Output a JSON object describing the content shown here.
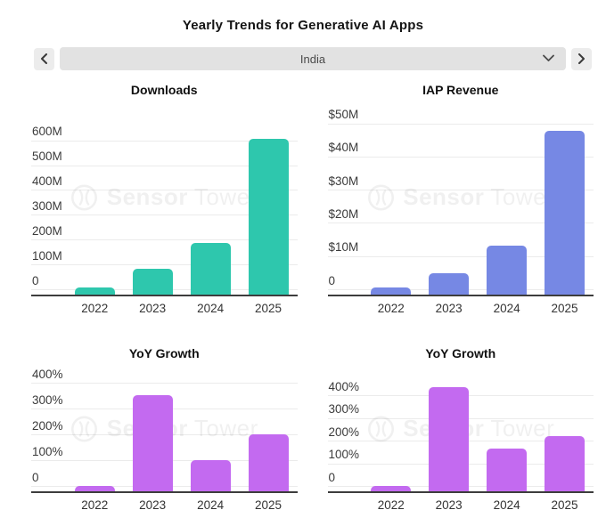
{
  "header": {
    "title": "Yearly Trends for Generative AI Apps"
  },
  "controls": {
    "selected_country": "India",
    "accent_grays": {
      "button_bg": "#ececec",
      "select_bg": "#e2e2e2"
    }
  },
  "icons": {
    "prev": "chevron-left",
    "next": "chevron-right",
    "select": "chevron-down",
    "watermark_logo": "sensor-tower-circle-logo"
  },
  "watermark": {
    "brand": "Sensor Tower",
    "bold_part": "Sensor",
    "light_part": "Tower"
  },
  "chart_data": [
    {
      "type": "bar",
      "title": "Downloads",
      "categories": [
        "2022",
        "2023",
        "2024",
        "2025"
      ],
      "values": [
        10,
        85,
        190,
        610
      ],
      "value_unit": "millions of downloads",
      "ticks": [
        0,
        100,
        200,
        300,
        400,
        500,
        600
      ],
      "tick_labels": [
        "0",
        "100M",
        "200M",
        "300M",
        "400M",
        "500M",
        "600M"
      ],
      "ymax": 735,
      "grid": true,
      "legend": "none",
      "color": "#2ec7ad"
    },
    {
      "type": "bar",
      "title": "IAP Revenue",
      "categories": [
        "2022",
        "2023",
        "2024",
        "2025"
      ],
      "values": [
        0.8,
        5,
        13.5,
        48
      ],
      "value_unit": "millions USD",
      "ticks": [
        0,
        10,
        20,
        30,
        40,
        50
      ],
      "tick_labels": [
        "0",
        "$10M",
        "$20M",
        "$30M",
        "$40M",
        "$50M"
      ],
      "ymax": 55,
      "grid": true,
      "legend": "none",
      "color": "#7688e4"
    },
    {
      "type": "bar",
      "title": "YoY Growth",
      "subtitle_context": "downloads growth",
      "categories": [
        "2022",
        "2023",
        "2024",
        "2025"
      ],
      "values": [
        3,
        355,
        105,
        205
      ],
      "value_unit": "percent",
      "ticks": [
        0,
        100,
        200,
        300,
        400
      ],
      "tick_labels": [
        "0",
        "100%",
        "200%",
        "300%",
        "400%"
      ],
      "ymax": 450,
      "grid": true,
      "legend": "none",
      "color": "#c36af0"
    },
    {
      "type": "bar",
      "title": "YoY Growth",
      "subtitle_context": "revenue growth",
      "categories": [
        "2022",
        "2023",
        "2024",
        "2025"
      ],
      "values": [
        3,
        440,
        170,
        225
      ],
      "value_unit": "percent",
      "ticks": [
        0,
        100,
        200,
        300,
        400
      ],
      "tick_labels": [
        "0",
        "100%",
        "200%",
        "300%",
        "400%"
      ],
      "ymax": 510,
      "grid": true,
      "legend": "none",
      "color": "#c36af0"
    }
  ]
}
